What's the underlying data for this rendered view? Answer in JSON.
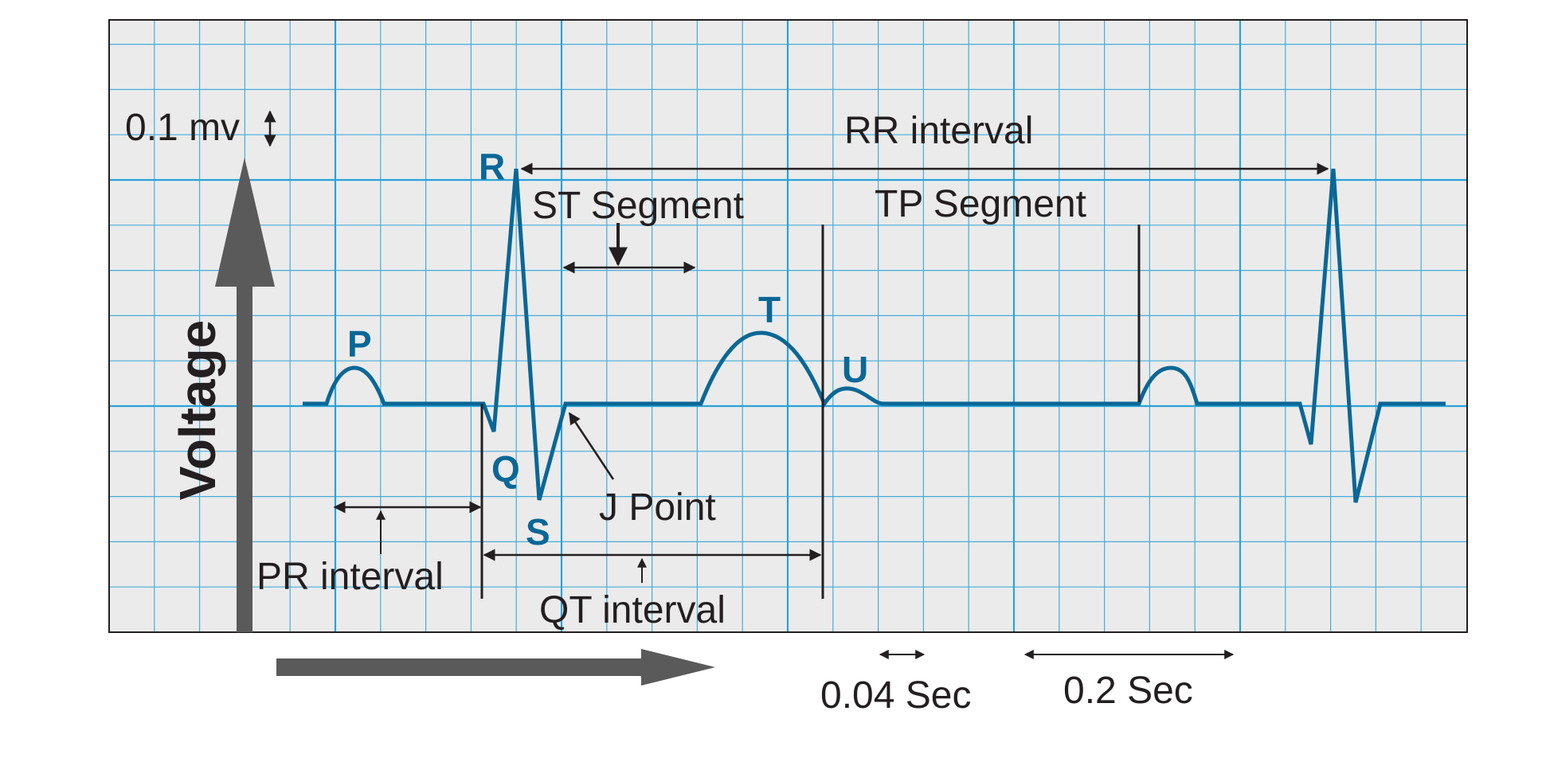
{
  "colors": {
    "paper": "#ebebeb",
    "grid": "#2aa3d8",
    "waveform": "#0a6796",
    "annotation": "#231f20",
    "arrow": "#5a5a5a"
  },
  "axes": {
    "voltage_label": "Voltage",
    "voltage_scale": "0.1 mv",
    "time_scale_small": "0.04 Sec",
    "time_scale_large": "0.2 Sec"
  },
  "waves": {
    "p": "P",
    "q": "Q",
    "r": "R",
    "s": "S",
    "t": "T",
    "u": "U"
  },
  "annotations": {
    "rr_interval": "RR interval",
    "st_segment": "ST Segment",
    "tp_segment": "TP Segment",
    "j_point": "J Point",
    "pr_interval": "PR interval",
    "qt_interval": "QT interval"
  }
}
